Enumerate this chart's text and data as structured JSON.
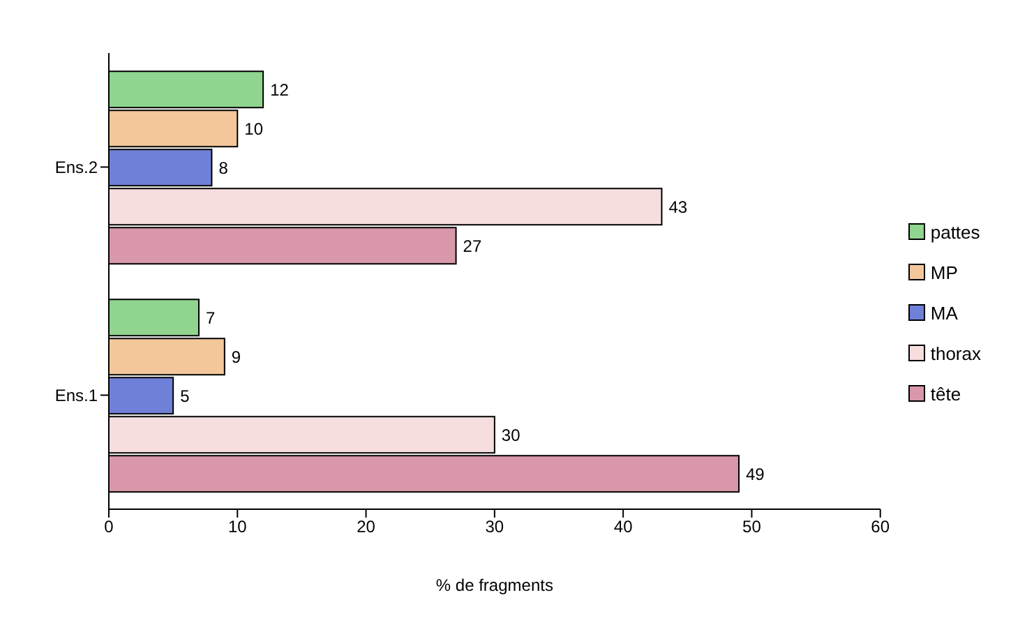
{
  "chart_data": {
    "type": "bar",
    "orientation": "horizontal",
    "categories": [
      "Ens.2",
      "Ens.1"
    ],
    "series": [
      {
        "name": "pattes",
        "color": "#8fd48f",
        "values": [
          12,
          7
        ]
      },
      {
        "name": "MP",
        "color": "#f3c79a",
        "values": [
          10,
          9
        ]
      },
      {
        "name": "MA",
        "color": "#6f80d8",
        "values": [
          8,
          5
        ]
      },
      {
        "name": "thorax",
        "color": "#f7dede",
        "values": [
          43,
          30
        ]
      },
      {
        "name": "tête",
        "color": "#d898aa",
        "values": [
          27,
          49
        ]
      }
    ],
    "xlabel": "% de fragments",
    "xlim": [
      0,
      60
    ],
    "xticks": [
      0,
      10,
      20,
      30,
      40,
      50,
      60
    ],
    "data_labels": true,
    "legend": "right",
    "grid": false
  }
}
